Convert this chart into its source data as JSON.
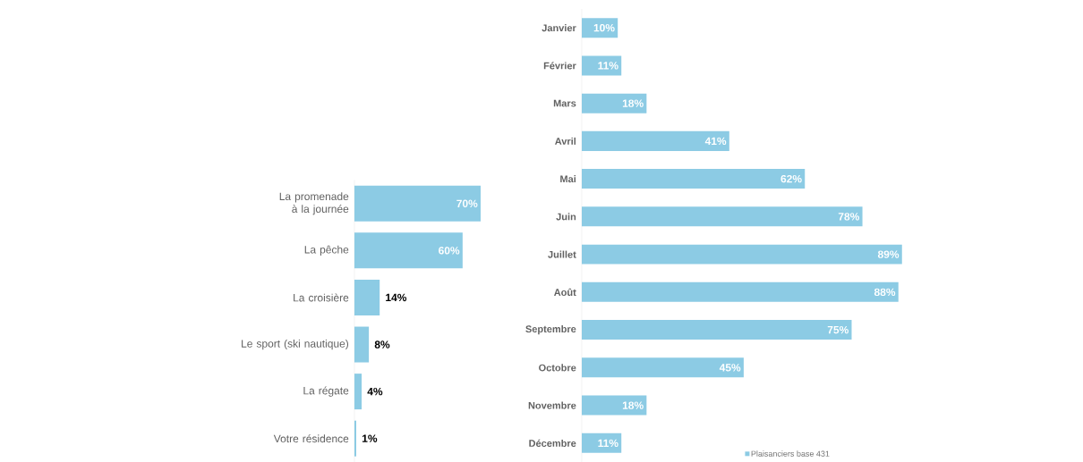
{
  "chart_data": [
    {
      "type": "bar",
      "orientation": "horizontal",
      "categories": [
        "La promenade à la journée",
        "La pêche",
        "La croisière",
        "Le sport (ski nautique)",
        "La régate",
        "Votre résidence"
      ],
      "values": [
        70,
        60,
        14,
        8,
        4,
        1
      ],
      "color": "#8ccbe4",
      "value_labels": [
        "70%",
        "60%",
        "14%",
        "8%",
        "4%",
        "1%"
      ]
    },
    {
      "type": "bar",
      "orientation": "horizontal",
      "categories": [
        "Janvier",
        "Février",
        "Mars",
        "Avril",
        "Mai",
        "Juin",
        "Juillet",
        "Août",
        "Septembre",
        "Octobre",
        "Novembre",
        "Décembre"
      ],
      "legend": "bottom",
      "series": [
        {
          "name": "Plaisanciers base 431",
          "color": "#8ccbe4",
          "values": [
            10,
            11,
            18,
            41,
            62,
            78,
            89,
            88,
            75,
            45,
            18,
            11
          ],
          "value_labels": [
            "10%",
            "11%",
            "18%",
            "41%",
            "62%",
            "78%",
            "89%",
            "88%",
            "75%",
            "45%",
            "18%",
            "11%"
          ]
        }
      ]
    }
  ]
}
